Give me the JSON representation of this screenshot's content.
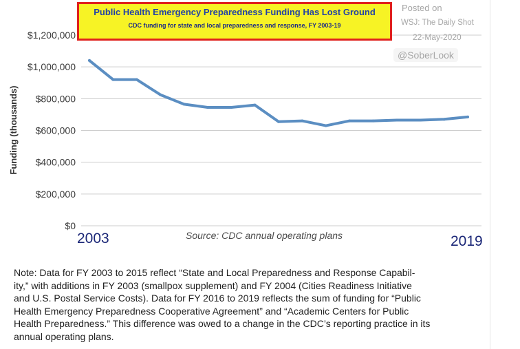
{
  "chart_data": {
    "type": "line",
    "title": "Public Health Emergency Preparedness Funding Has Lost Ground",
    "subtitle": "CDC funding for state and local preparedness and response, FY 2003-19",
    "ylabel": "Funding (thousands)",
    "x": [
      2003,
      2004,
      2005,
      2006,
      2007,
      2008,
      2009,
      2010,
      2011,
      2012,
      2013,
      2014,
      2015,
      2016,
      2017,
      2018,
      2019
    ],
    "xlim": [
      2003,
      2019
    ],
    "x_tick_labels": [
      "2003",
      "2019"
    ],
    "ylim": [
      0,
      1200000
    ],
    "y_ticks": [
      0,
      200000,
      400000,
      600000,
      800000,
      1000000,
      1200000
    ],
    "y_tick_labels": [
      "$0",
      "$200,000",
      "$400,000",
      "$600,000",
      "$800,000",
      "$1,000,000",
      "$1,200,000"
    ],
    "grid": true,
    "legend": "none",
    "series": [
      {
        "values": [
          1040000,
          920000,
          920000,
          825000,
          765000,
          745000,
          745000,
          760000,
          655000,
          660000,
          630000,
          660000,
          660000,
          665000,
          665000,
          670000,
          685000
        ]
      }
    ],
    "source": "Source: CDC annual operating plans"
  },
  "watermark": {
    "posted_on": "Posted on",
    "publication": "WSJ: The Daily Shot",
    "date": "22-May-2020",
    "handle": "@SoberLook"
  },
  "note": {
    "lines": [
      "Note: Data for FY 2003 to 2015 reflect “State and Local Preparedness and Response Capabil-",
      "ity,” with additions in FY 2003 (smallpox supplement) and FY 2004 (Cities Readiness Initiative",
      "and U.S. Postal Service Costs). Data for FY 2016 to 2019 reflects the sum of funding for “Public",
      "Health Emergency Preparedness Cooperative Agreement” and “Academic Centers for Public",
      "Health Preparedness.” This difference was owed to a change in the CDC’s reporting practice in its",
      "annual operating plans."
    ]
  },
  "colors": {
    "series_line": "#5b8ec2",
    "title_text": "#2141a6",
    "subtitle_text": "#1d2b85",
    "highlight_fill": "#f7f325",
    "highlight_border": "#e0201c",
    "year_labels": "#1c2878",
    "gridline": "#cdcdcd",
    "tick_text": "#3b3b3b",
    "watermark_text": "#a6a6a6"
  }
}
